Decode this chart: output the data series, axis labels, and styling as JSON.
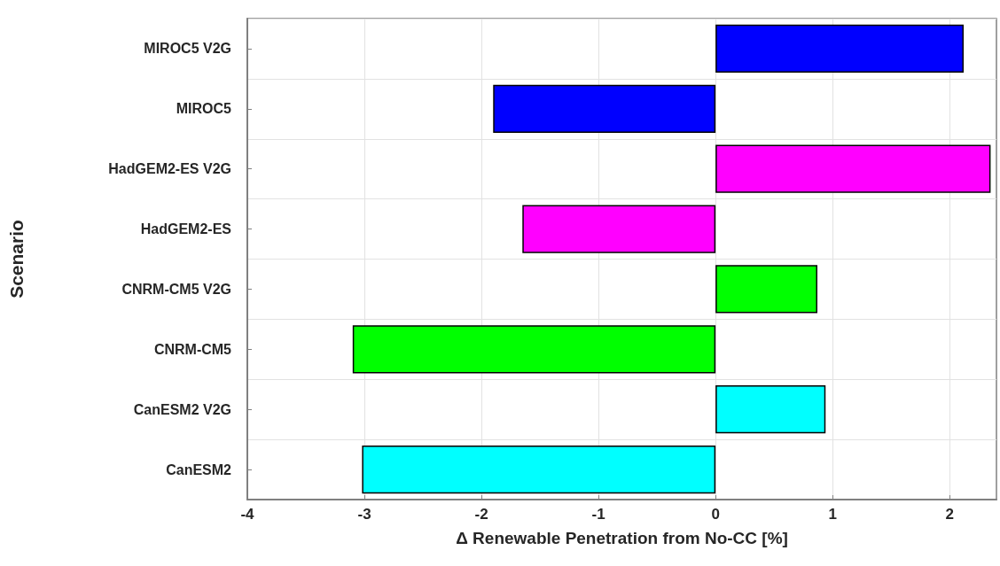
{
  "chart_data": {
    "type": "bar",
    "orientation": "horizontal",
    "xlabel": "Δ Renewable Penetration from No-CC [%]",
    "ylabel": "Scenario",
    "categories": [
      "MIROC5 V2G",
      "MIROC5",
      "HadGEM2-ES V2G",
      "HadGEM2-ES",
      "CNRM-CM5 V2G",
      "CNRM-CM5",
      "CanESM2 V2G",
      "CanESM2"
    ],
    "values": [
      2.12,
      -1.9,
      2.35,
      -1.65,
      0.87,
      -3.1,
      0.94,
      -3.02
    ],
    "colors": [
      "#0000ff",
      "#0000ff",
      "#ff00ff",
      "#ff00ff",
      "#00ff00",
      "#00ff00",
      "#00ffff",
      "#00ffff"
    ],
    "xlim": [
      -4,
      2.4
    ],
    "xticks": [
      -4,
      -3,
      -2,
      -1,
      0,
      1,
      2
    ],
    "grid": true
  }
}
